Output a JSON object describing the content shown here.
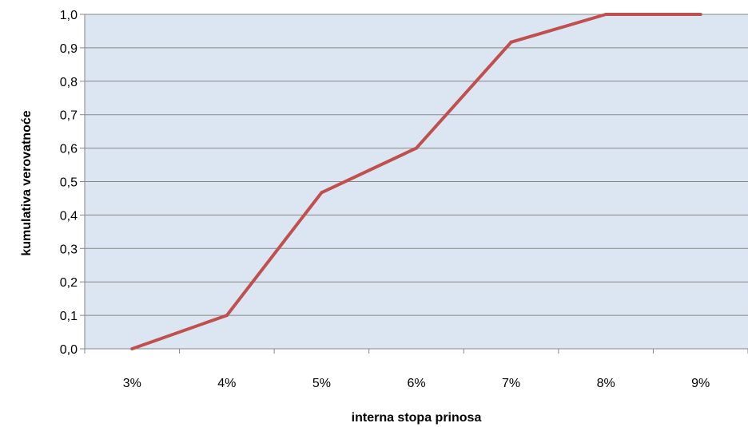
{
  "chart_data": {
    "type": "line",
    "title": "",
    "xlabel": "interna stopa prinosa",
    "ylabel": "kumulativa verovatnoće",
    "categories": [
      "3%",
      "4%",
      "5%",
      "6%",
      "7%",
      "8%",
      "9%"
    ],
    "y_ticks": [
      "0,0",
      "0,1",
      "0,2",
      "0,3",
      "0,4",
      "0,5",
      "0,6",
      "0,7",
      "0,8",
      "0,9",
      "1,0"
    ],
    "ylim": [
      0,
      1
    ],
    "grid": true,
    "legend": "none",
    "series": [
      {
        "values": [
          0.0,
          0.1,
          0.467,
          0.6,
          0.917,
          1.0,
          1.0
        ]
      }
    ],
    "colors": {
      "plot_background": "#dce6f2",
      "line": "#c0504d",
      "gridline": "#868686",
      "axis": "#868686"
    }
  }
}
